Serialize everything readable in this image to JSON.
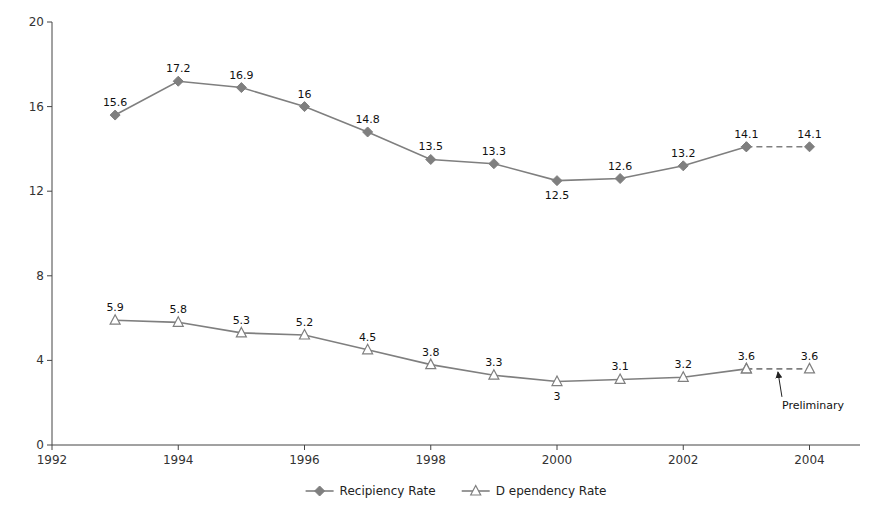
{
  "chart_data": {
    "type": "line",
    "x": [
      1993,
      1994,
      1995,
      1996,
      1997,
      1998,
      1999,
      2000,
      2001,
      2002,
      2003,
      2004
    ],
    "xlim": [
      1992,
      2004.8
    ],
    "xticks": [
      1992,
      1994,
      1996,
      1998,
      2000,
      2002,
      2004
    ],
    "ylim": [
      0,
      20
    ],
    "yticks": [
      0,
      4,
      8,
      12,
      16,
      20
    ],
    "grid": false,
    "data_labels": true,
    "legend": "bottom",
    "series": [
      {
        "name": "Recipiency Rate",
        "color": "#7f7f7f",
        "marker": "diamond",
        "line_style": "solid",
        "values": [
          15.6,
          17.2,
          16.9,
          16.0,
          14.8,
          13.5,
          13.3,
          12.5,
          12.6,
          13.2,
          14.1,
          null
        ]
      },
      {
        "name": "D ependency Rate",
        "color": "#7f7f7f",
        "marker": "triangle",
        "line_style": "solid",
        "values": [
          5.9,
          5.8,
          5.3,
          5.2,
          4.5,
          3.8,
          3.3,
          3.0,
          3.1,
          3.2,
          3.6,
          null
        ]
      },
      {
        "color": "#7f7f7f",
        "marker": "diamond",
        "line_style": "dashed",
        "values": [
          null,
          null,
          null,
          null,
          null,
          null,
          null,
          null,
          null,
          null,
          14.1,
          14.1
        ]
      },
      {
        "color": "#7f7f7f",
        "marker": "triangle",
        "line_style": "dashed",
        "values": [
          null,
          null,
          null,
          null,
          null,
          null,
          null,
          null,
          null,
          null,
          3.6,
          3.6
        ]
      }
    ],
    "annotations": [
      {
        "text": "Preliminary",
        "x": 2003.5,
        "y": 3.6
      }
    ]
  }
}
